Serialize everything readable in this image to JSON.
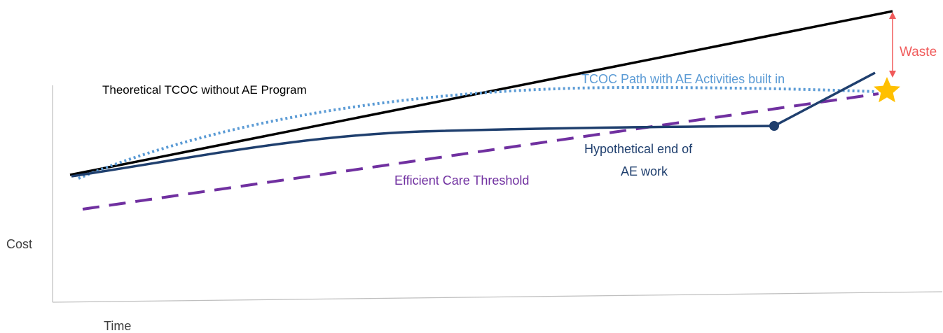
{
  "labels": {
    "theoretical": "Theoretical TCOC without AE Program",
    "tcoc_path": "TCOC Path with AE Activities built in",
    "waste": "Waste",
    "hypothetical_line1": "Hypothetical end of",
    "hypothetical_line2": "AE work",
    "efficient": "Efficient Care Threshold",
    "y_axis": "Cost",
    "x_axis": "Time"
  },
  "colors": {
    "theoretical_line": "#000000",
    "tcoc_path": "#5b9bd5",
    "actual_path": "#1f3f6e",
    "efficient_threshold": "#7030a0",
    "waste": "#f05a5a",
    "star": "#ffc000",
    "axis": "#bfbfbf"
  },
  "icons": {
    "star": "star-icon",
    "end_marker": "dot-marker"
  }
}
